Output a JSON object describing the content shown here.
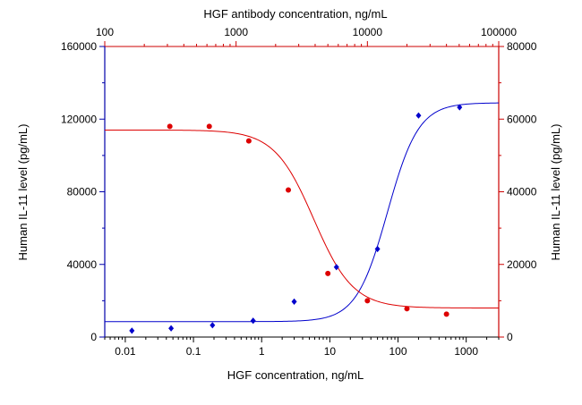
{
  "chart_data": {
    "type": "scatter",
    "x_bottom": {
      "label": "HGF concentration, ng/mL",
      "scale": "log",
      "range": [
        0.005,
        3000
      ],
      "tick_values": [
        0.01,
        0.1,
        1,
        10,
        100,
        1000
      ],
      "tick_labels": [
        "0.01",
        "0.1",
        "1",
        "10",
        "100",
        "1000"
      ],
      "color": "#0000aa"
    },
    "x_top": {
      "label": "HGF antibody concentration, ng/mL",
      "scale": "log",
      "range": [
        100,
        100000
      ],
      "tick_values": [
        100,
        1000,
        10000,
        100000
      ],
      "tick_labels": [
        "100",
        "1000",
        "10000",
        "100000"
      ],
      "color": "#cc0000"
    },
    "y_left": {
      "label": "Human IL-11 level (pg/mL)",
      "range": [
        0,
        160000
      ],
      "tick_values": [
        0,
        40000,
        80000,
        120000,
        160000
      ],
      "tick_labels": [
        "0",
        "40000",
        "80000",
        "120000",
        "160000"
      ],
      "color": "#0000aa"
    },
    "y_right": {
      "label": "Human IL-11 level (pg/mL)",
      "range": [
        0,
        80000
      ],
      "tick_values": [
        0,
        20000,
        40000,
        60000,
        80000
      ],
      "tick_labels": [
        "0",
        "20000",
        "40000",
        "60000",
        "80000"
      ],
      "color": "#cc0000"
    },
    "series": [
      {
        "axes": "bottom-left",
        "color": "#0000cc",
        "marker": "diamond",
        "x": [
          0.0125,
          0.047,
          0.19,
          0.75,
          3.0,
          12.5,
          50,
          200,
          800
        ],
        "y": [
          3500,
          4800,
          6500,
          9000,
          19500,
          38500,
          48500,
          122000,
          126500
        ],
        "fit": {
          "model": "4PL",
          "bottom": 8500,
          "top": 129000,
          "ec50": 70,
          "hill": 1.9
        }
      },
      {
        "axes": "top-right",
        "color": "#dd0000",
        "marker": "circle",
        "x": [
          313,
          625,
          1250,
          2500,
          5000,
          10000,
          20000,
          40000
        ],
        "y": [
          58000,
          58000,
          54000,
          40500,
          17500,
          10000,
          7800,
          6300
        ],
        "fit": {
          "model": "4PL",
          "bottom": 8000,
          "top": 57000,
          "ec50": 3900,
          "hill": 2.9
        }
      }
    ],
    "grid": false,
    "legend": "none"
  }
}
